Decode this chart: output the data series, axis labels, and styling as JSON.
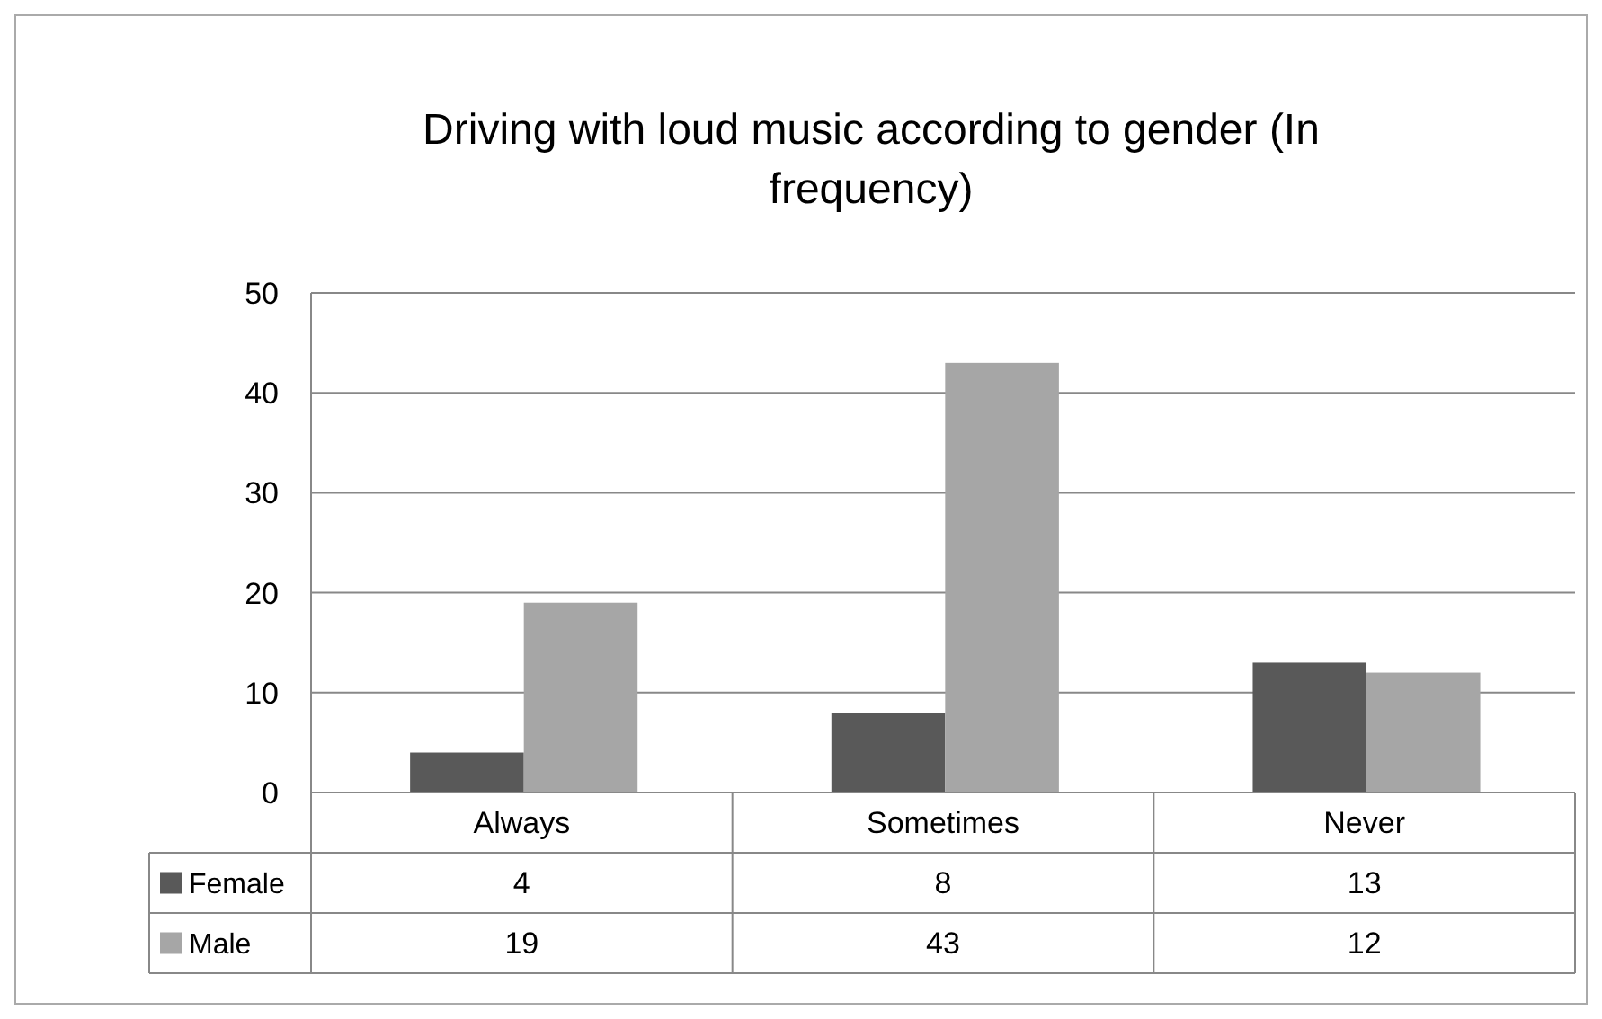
{
  "chart_data": {
    "type": "bar",
    "title": "Driving with loud music according to gender (In frequency)",
    "categories": [
      "Always",
      "Sometimes",
      "Never"
    ],
    "series": [
      {
        "name": "Female",
        "color": "#595959",
        "values": [
          4,
          8,
          13
        ]
      },
      {
        "name": "Male",
        "color": "#a6a6a6",
        "values": [
          19,
          43,
          12
        ]
      }
    ],
    "ylim": [
      0,
      50
    ],
    "yticks": [
      0,
      10,
      20,
      30,
      40,
      50
    ],
    "grid": "y",
    "data_labels": true,
    "legend": "bottom"
  }
}
